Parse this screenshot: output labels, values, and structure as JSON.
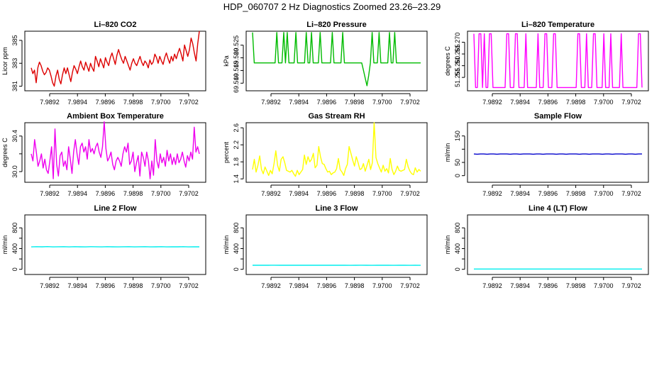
{
  "page": {
    "title": "HDP_060707  2 Hz Diagnostics Zoomed 23.26–23.29"
  },
  "chart_data": [
    {
      "id": "p1",
      "type": "line",
      "title": "Li–820 CO2",
      "ylabel": "Licor ppm",
      "color": "#dd0000",
      "xlim": [
        7.98905,
        7.97035
      ],
      "xticks": [
        "7.9892",
        "7.9894",
        "7.9896",
        "7.9898",
        "7.9700",
        "7.9702"
      ],
      "ylim": [
        380.6,
        385.8
      ],
      "yticks": [
        381,
        383,
        385
      ],
      "ytick_labels": [
        "381",
        "383",
        "385"
      ],
      "series": [
        {
          "name": "CO2",
          "values": [
            382.6,
            382.1,
            382.4,
            381.3,
            382.6,
            383.1,
            382.8,
            382.3,
            382.0,
            382.2,
            382.6,
            382.4,
            381.9,
            381.3,
            381.0,
            381.9,
            382.4,
            381.6,
            381.2,
            382.0,
            382.6,
            382.1,
            382.6,
            382.0,
            381.4,
            382.2,
            382.8,
            382.5,
            382.1,
            382.7,
            383.2,
            382.7,
            382.4,
            383.1,
            382.7,
            382.3,
            383.0,
            382.6,
            382.3,
            383.6,
            383.2,
            382.7,
            383.4,
            383.0,
            382.6,
            383.5,
            383.1,
            382.8,
            383.5,
            383.9,
            383.4,
            382.9,
            383.7,
            384.2,
            383.7,
            383.3,
            383.0,
            383.6,
            383.2,
            382.8,
            382.4,
            383.0,
            383.4,
            383.0,
            382.8,
            383.2,
            383.6,
            383.1,
            382.8,
            383.2,
            383.0,
            382.6,
            383.3,
            382.9,
            383.1,
            383.8,
            383.5,
            383.0,
            383.6,
            383.2,
            382.9,
            383.5,
            383.9,
            383.4,
            383.0,
            383.6,
            383.2,
            383.8,
            383.4,
            383.9,
            384.3,
            383.8,
            383.2,
            384.6,
            384.1,
            383.6,
            384.2,
            385.2,
            384.7,
            383.9,
            383.2,
            384.7,
            385.8
          ]
        }
      ]
    },
    {
      "id": "p2",
      "type": "line",
      "title": "Li–820 Pressure",
      "ylabel": "kPa",
      "color": "#00bb00",
      "xlim": [
        7.98905,
        7.97035
      ],
      "xticks": [
        "7.9892",
        "7.9894",
        "7.9896",
        "7.9898",
        "7.9700",
        "7.9702"
      ],
      "ylim": [
        69.507,
        69.5305
      ],
      "yticks": [
        69.51,
        69.515,
        69.52,
        69.525
      ],
      "ytick_labels": [
        "69.510",
        "69.515",
        "69.520",
        "69.525"
      ],
      "series": [
        {
          "name": "Pressure",
          "values": [
            69.53,
            69.518,
            69.518,
            69.518,
            69.518,
            69.518,
            69.518,
            69.518,
            69.518,
            69.518,
            69.518,
            69.518,
            69.518,
            69.518,
            69.53,
            69.518,
            69.518,
            69.518,
            69.53,
            69.518,
            69.53,
            69.518,
            69.518,
            69.518,
            69.518,
            69.53,
            69.518,
            69.518,
            69.518,
            69.518,
            69.518,
            69.53,
            69.518,
            69.518,
            69.53,
            69.518,
            69.518,
            69.518,
            69.518,
            69.53,
            69.518,
            69.518,
            69.518,
            69.518,
            69.518,
            69.518,
            69.53,
            69.518,
            69.518,
            69.518,
            69.518,
            69.518,
            69.53,
            69.518,
            69.518,
            69.518,
            69.518,
            69.518,
            69.518,
            69.518,
            69.518,
            69.518,
            69.518,
            69.518,
            69.515,
            69.512,
            69.509,
            69.513,
            69.518,
            69.53,
            69.518,
            69.518,
            69.518,
            69.53,
            69.518,
            69.518,
            69.518,
            69.518,
            69.518,
            69.53,
            69.518,
            69.518,
            69.53,
            69.518,
            69.518,
            69.518,
            69.518,
            69.518,
            69.518,
            69.518,
            69.518,
            69.518,
            69.518,
            69.518,
            69.518,
            69.518,
            69.518,
            69.518
          ]
        }
      ]
    },
    {
      "id": "p3",
      "type": "line",
      "title": "Li–820 Temperature",
      "ylabel": "degrees C",
      "color": "#ff00ff",
      "xlim": [
        7.98905,
        7.97035
      ],
      "xticks": [
        "7.9892",
        "7.9894",
        "7.9896",
        "7.9898",
        "7.9700",
        "7.9702"
      ],
      "ylim": [
        51.2493,
        51.2747
      ],
      "yticks": [
        51.255,
        51.26,
        51.265,
        51.27
      ],
      "ytick_labels": [
        "51.255",
        "51.260",
        "51.265",
        "51.270"
      ],
      "series": [
        {
          "name": "Temperature",
          "values": [
            51.2736,
            51.2507,
            51.2507,
            51.2736,
            51.2736,
            51.2507,
            51.2736,
            51.2507,
            51.2507,
            51.2736,
            51.2736,
            51.2507,
            51.2507,
            51.2507,
            51.2507,
            51.2507,
            51.2507,
            51.2507,
            51.2507,
            51.2736,
            51.2736,
            51.2507,
            51.2507,
            51.2507,
            51.2736,
            51.2736,
            51.2507,
            51.2507,
            51.2507,
            51.2507,
            51.2736,
            51.2507,
            51.2507,
            51.2507,
            51.2507,
            51.2507,
            51.2507,
            51.2736,
            51.2507,
            51.2507,
            51.2507,
            51.2736,
            51.2736,
            51.2507,
            51.2507,
            51.2507,
            51.2736,
            51.2736,
            51.2507,
            51.2507,
            51.2507,
            51.2507,
            51.2507,
            51.2507,
            51.2507,
            51.2507,
            51.2507,
            51.2507,
            51.2507,
            51.2507,
            51.2736,
            51.2736,
            51.2507,
            51.2507,
            51.2507,
            51.2736,
            51.2507,
            51.2507,
            51.2507,
            51.2736,
            51.2736,
            51.2507,
            51.2507,
            51.2507,
            51.2507,
            51.2736,
            51.2507,
            51.2507,
            51.2507,
            51.2736,
            51.2507,
            51.2507,
            51.2507,
            51.2507,
            51.2507,
            51.2736,
            51.2507,
            51.2507,
            51.2507,
            51.2507,
            51.2507,
            51.2507,
            51.2507,
            51.2507,
            51.2507,
            51.2736,
            51.2736,
            51.2507
          ]
        }
      ]
    },
    {
      "id": "p4",
      "type": "line",
      "title": "Ambient Box Temperature",
      "ylabel": "degrees C",
      "color": "#ee00ee",
      "xlim": [
        7.98905,
        7.97035
      ],
      "xticks": [
        "7.9892",
        "7.9894",
        "7.9896",
        "7.9898",
        "7.9700",
        "7.9702"
      ],
      "ylim": [
        29.88,
        30.55
      ],
      "yticks": [
        30.0,
        30.2,
        30.4
      ],
      "ytick_labels": [
        "30.0",
        "",
        "30.4"
      ],
      "series": [
        {
          "name": "Ambient",
          "values": [
            30.2,
            30.12,
            30.36,
            30.22,
            30.06,
            30.12,
            30.2,
            30.04,
            30.14,
            30.02,
            29.98,
            30.12,
            30.28,
            29.92,
            30.48,
            30.08,
            29.95,
            30.18,
            30.22,
            30.06,
            30.12,
            30.02,
            30.28,
            30.14,
            29.98,
            30.22,
            30.36,
            30.2,
            30.08,
            30.28,
            30.32,
            30.22,
            30.28,
            30.14,
            30.36,
            30.22,
            30.26,
            30.2,
            30.28,
            30.32,
            30.22,
            30.16,
            30.28,
            30.56,
            30.26,
            30.12,
            30.16,
            30.22,
            30.08,
            30.02,
            30.12,
            30.16,
            30.12,
            30.06,
            30.2,
            30.28,
            30.22,
            30.32,
            30.08,
            30.12,
            30.22,
            30.0,
            30.1,
            30.18,
            29.95,
            30.22,
            30.16,
            30.06,
            30.22,
            30.12,
            29.92,
            30.12,
            29.96,
            30.36,
            30.12,
            30.04,
            30.2,
            30.1,
            30.16,
            30.06,
            30.24,
            30.12,
            30.2,
            30.08,
            30.16,
            30.08,
            30.2,
            30.1,
            30.14,
            30.22,
            30.12,
            30.05,
            30.18,
            30.12,
            30.22,
            30.14,
            30.5,
            30.22,
            30.28,
            30.2
          ]
        }
      ]
    },
    {
      "id": "p5",
      "type": "line",
      "title": "Gas Stream RH",
      "ylabel": "percent",
      "color": "#ffff00",
      "xlim": [
        7.98905,
        7.97035
      ],
      "xticks": [
        "7.9892",
        "7.9894",
        "7.9896",
        "7.9898",
        "7.9700",
        "7.9702"
      ],
      "ylim": [
        1.32,
        2.72
      ],
      "yticks": [
        1.4,
        1.8,
        2.2,
        2.6
      ],
      "ytick_labels": [
        "1.4",
        "1.8",
        "2.2",
        "2.6"
      ],
      "series": [
        {
          "name": "RH",
          "values": [
            1.62,
            1.86,
            1.56,
            1.72,
            1.94,
            1.62,
            1.52,
            1.68,
            1.58,
            1.48,
            1.6,
            1.52,
            1.76,
            2.06,
            1.72,
            1.58,
            1.86,
            1.92,
            1.78,
            1.6,
            1.58,
            1.56,
            1.6,
            1.52,
            1.46,
            1.6,
            1.5,
            1.56,
            1.62,
            1.96,
            1.74,
            1.92,
            1.8,
            1.86,
            2.0,
            1.66,
            1.72,
            2.16,
            1.92,
            1.76,
            1.74,
            1.64,
            1.56,
            1.58,
            1.5,
            1.54,
            1.56,
            1.64,
            1.88,
            1.62,
            1.56,
            1.48,
            1.64,
            1.74,
            2.16,
            2.0,
            1.84,
            1.7,
            1.92,
            1.78,
            1.62,
            1.64,
            1.76,
            1.58,
            1.72,
            1.86,
            1.62,
            1.78,
            2.72,
            1.9,
            1.76,
            1.66,
            1.56,
            1.72,
            1.58,
            1.64,
            1.54,
            1.88,
            1.62,
            1.5,
            1.58,
            1.7,
            1.6,
            1.58,
            1.6,
            1.62,
            1.86,
            1.68,
            1.58,
            1.52,
            1.5,
            1.66,
            1.56,
            1.62,
            1.58
          ]
        }
      ]
    },
    {
      "id": "p6",
      "type": "line",
      "title": "Sample Flow",
      "ylabel": "ml/min",
      "color": "#0000cc",
      "xlim": [
        7.98905,
        7.97035
      ],
      "xticks": [
        "7.9892",
        "7.9894",
        "7.9896",
        "7.9898",
        "7.9700",
        "7.9702"
      ],
      "ylim": [
        -25,
        200
      ],
      "yticks": [
        0,
        50,
        100,
        150
      ],
      "ytick_labels": [
        "0",
        "50",
        "",
        "150"
      ],
      "series": [
        {
          "name": "Sample Flow",
          "values": [
            82,
            81,
            82,
            82,
            81,
            82,
            82,
            81,
            82,
            82,
            82,
            81,
            82,
            82,
            81,
            82,
            82,
            82,
            81,
            82,
            82,
            81,
            82,
            82,
            82,
            81,
            82,
            82,
            81,
            82,
            82,
            82,
            81,
            82,
            82,
            81,
            82,
            82,
            82,
            81,
            82,
            82,
            81,
            82,
            82,
            82,
            81,
            82,
            82,
            81,
            82,
            82
          ]
        }
      ]
    },
    {
      "id": "p7",
      "type": "line",
      "title": "Line 2 Flow",
      "ylabel": "ml/min",
      "color": "#00eeee",
      "xlim": [
        7.98905,
        7.97035
      ],
      "xticks": [
        "7.9892",
        "7.9894",
        "7.9896",
        "7.9898",
        "7.9700",
        "7.9702"
      ],
      "ylim": [
        -100,
        1050
      ],
      "yticks": [
        0,
        200,
        400,
        600,
        800
      ],
      "ytick_labels": [
        "0",
        "",
        "400",
        "",
        "800"
      ],
      "series": [
        {
          "name": "Line 2 Flow",
          "values": [
            433,
            436,
            434,
            438,
            433,
            435,
            437,
            432,
            436,
            434,
            433,
            437,
            435,
            433,
            436,
            434,
            432,
            435,
            437,
            433,
            435,
            436,
            433,
            434,
            437,
            433,
            435,
            434,
            436,
            433,
            435,
            434
          ]
        }
      ]
    },
    {
      "id": "p8",
      "type": "line",
      "title": "Line 3 Flow",
      "ylabel": "ml/min",
      "color": "#00eeee",
      "xlim": [
        7.98905,
        7.97035
      ],
      "xticks": [
        "7.9892",
        "7.9894",
        "7.9896",
        "7.9898",
        "7.9700",
        "7.9702"
      ],
      "ylim": [
        -100,
        1050
      ],
      "yticks": [
        0,
        200,
        400,
        600,
        800
      ],
      "ytick_labels": [
        "0",
        "",
        "400",
        "",
        "800"
      ],
      "series": [
        {
          "name": "Line 3 Flow",
          "values": [
            78,
            79,
            78,
            78,
            79,
            78,
            78,
            79,
            78,
            78,
            79,
            78,
            78,
            79,
            78,
            78,
            79,
            78,
            76,
            78,
            79,
            78,
            76,
            78,
            79,
            78,
            76,
            78,
            78,
            77,
            78,
            77
          ]
        }
      ]
    },
    {
      "id": "p9",
      "type": "line",
      "title": "Line 4 (LT) Flow",
      "ylabel": "ml/min",
      "color": "#00eeee",
      "xlim": [
        7.98905,
        7.97035
      ],
      "xticks": [
        "7.9892",
        "7.9894",
        "7.9896",
        "7.9898",
        "7.9700",
        "7.9702"
      ],
      "ylim": [
        -100,
        1050
      ],
      "yticks": [
        0,
        200,
        400,
        600,
        800
      ],
      "ytick_labels": [
        "0",
        "",
        "400",
        "",
        "800"
      ],
      "series": [
        {
          "name": "Line 4 Flow",
          "values": [
            5,
            5,
            5,
            5,
            5,
            5,
            5,
            5,
            5,
            5,
            5,
            5,
            5,
            5,
            5,
            5,
            5,
            5,
            5,
            5,
            5,
            5,
            5,
            5
          ]
        }
      ]
    }
  ]
}
